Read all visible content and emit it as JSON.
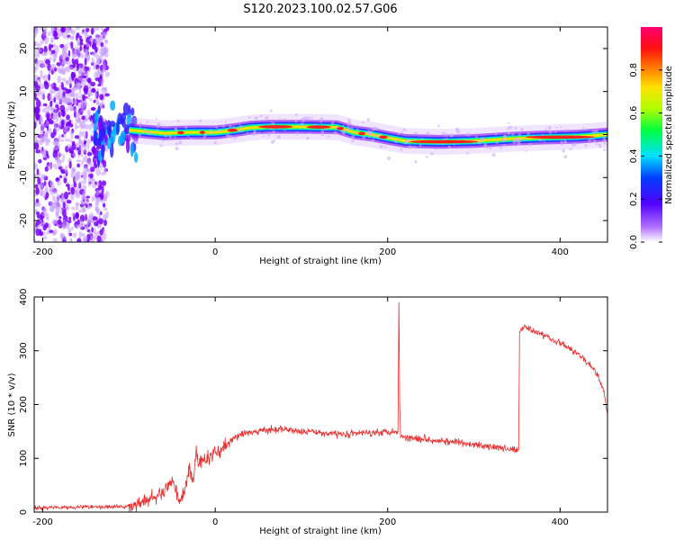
{
  "title": "S120.2023.100.02.57.G06",
  "colorbar": {
    "label": "Normalized spectral amplitude",
    "ticks": [
      "0.0",
      "0.2",
      "0.4",
      "0.6",
      "0.8"
    ],
    "tick_values": [
      0.0,
      0.2,
      0.4,
      0.6,
      0.8
    ],
    "range": [
      0,
      1
    ],
    "colors": [
      "#ffffff",
      "#7b00ff",
      "#0000ff",
      "#00ffff",
      "#00ff00",
      "#ffff00",
      "#ff0000",
      "#ff0080"
    ]
  },
  "chart_data": [
    {
      "type": "heatmap",
      "xlabel": "Height of straight line (km)",
      "ylabel": "Frequency (Hz)",
      "xlim": [
        -210,
        455
      ],
      "ylim": [
        -25,
        25
      ],
      "xticks": [
        -200,
        0,
        200,
        400
      ],
      "yticks": [
        -20,
        -10,
        0,
        10,
        20
      ],
      "ridge": {
        "x": [
          -100,
          -60,
          -30,
          0,
          20,
          40,
          60,
          100,
          140,
          160,
          180,
          200,
          220,
          260,
          300,
          340,
          380,
          420,
          455
        ],
        "y": [
          1.0,
          0.3,
          0.5,
          0.5,
          1.0,
          1.6,
          1.8,
          1.8,
          1.7,
          0.5,
          0.0,
          -0.8,
          -1.5,
          -1.7,
          -1.5,
          -1.0,
          -0.7,
          -0.5,
          0.0
        ]
      },
      "noise_region_x": [
        -210,
        -145
      ]
    },
    {
      "type": "line",
      "xlabel": "Height of straight line (km)",
      "ylabel": "SNR (10 * v/v)",
      "xlim": [
        -210,
        455
      ],
      "ylim": [
        0,
        400
      ],
      "xticks": [
        -200,
        0,
        200,
        400
      ],
      "yticks": [
        0,
        100,
        200,
        300,
        400
      ],
      "series": [
        {
          "color": "#e83030",
          "x": [
            -210,
            -150,
            -100,
            -80,
            -60,
            -50,
            -40,
            -35,
            -30,
            -25,
            -22,
            -20,
            -10,
            0,
            10,
            20,
            30,
            50,
            80,
            100,
            150,
            200,
            212,
            213,
            214,
            215,
            250,
            300,
            350,
            352,
            353,
            360,
            380,
            400,
            420,
            440,
            450,
            455
          ],
          "y": [
            8,
            10,
            10,
            20,
            35,
            60,
            20,
            40,
            80,
            60,
            120,
            90,
            100,
            110,
            120,
            135,
            145,
            150,
            155,
            150,
            145,
            150,
            150,
            395,
            200,
            140,
            135,
            125,
            115,
            115,
            340,
            345,
            330,
            315,
            295,
            265,
            230,
            180
          ]
        }
      ]
    }
  ]
}
